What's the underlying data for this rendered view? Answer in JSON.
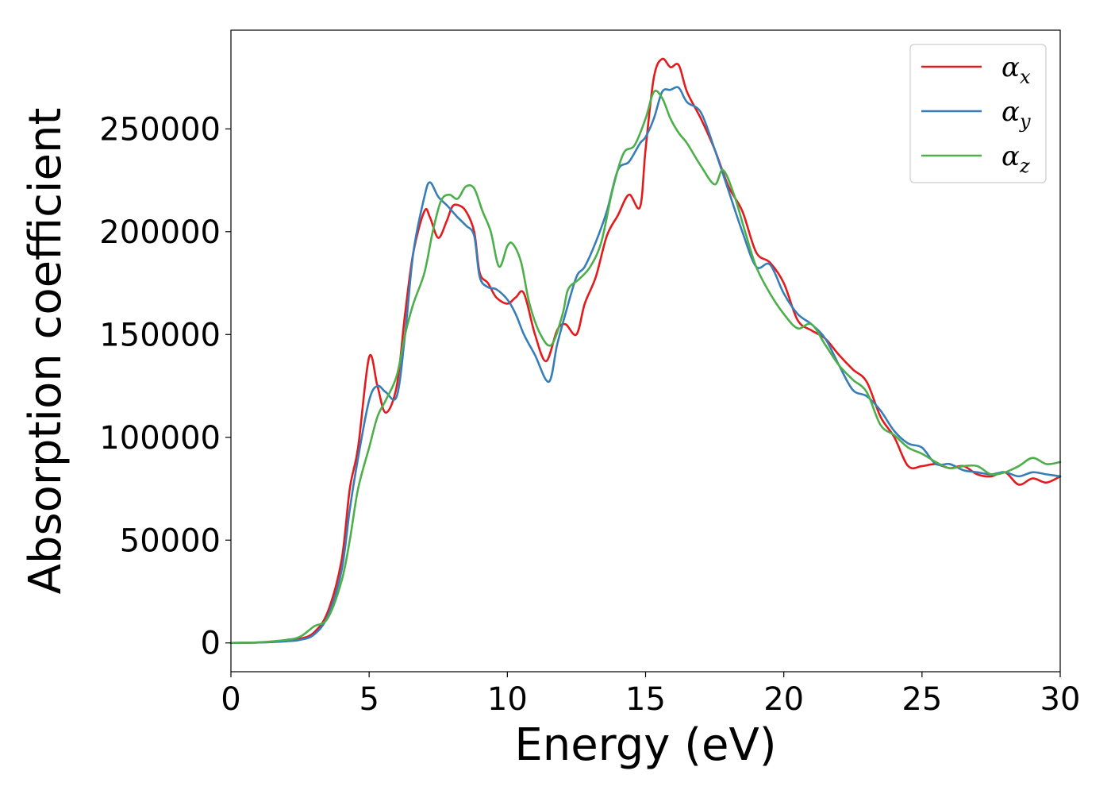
{
  "chart_data": {
    "type": "line",
    "title": "",
    "xlabel": "Energy (eV)",
    "ylabel": "Absorption coefficient",
    "xlim": [
      0,
      30
    ],
    "ylim": [
      -14000,
      298000
    ],
    "xticks": [
      0,
      5,
      10,
      15,
      20,
      25,
      30
    ],
    "xtick_labels": [
      "0",
      "5",
      "10",
      "15",
      "20",
      "25",
      "30"
    ],
    "yticks": [
      0,
      50000,
      100000,
      150000,
      200000,
      250000
    ],
    "ytick_labels": [
      "0",
      "50000",
      "100000",
      "150000",
      "200000",
      "250000"
    ],
    "grid": false,
    "legend_position": "top-right",
    "series": [
      {
        "name": "αx",
        "symbol": "α",
        "subscript": "x",
        "color": "#e41a1c",
        "x": [
          0,
          1,
          2,
          2.5,
          3,
          3.5,
          4,
          4.3,
          4.6,
          5,
          5.3,
          5.6,
          6,
          6.3,
          6.6,
          7,
          7.2,
          7.5,
          7.8,
          8,
          8.2,
          8.5,
          8.8,
          9,
          9.3,
          9.6,
          10,
          10.3,
          10.6,
          11,
          11.4,
          11.8,
          12.1,
          12.5,
          12.8,
          13.2,
          13.6,
          14,
          14.4,
          14.8,
          15,
          15.3,
          15.6,
          15.9,
          16.2,
          16.5,
          17,
          17.5,
          18,
          18.5,
          19,
          19.5,
          20,
          20.5,
          21,
          21.5,
          22,
          22.5,
          23,
          23.5,
          24,
          24.5,
          25,
          25.5,
          26,
          26.5,
          27,
          27.5,
          28,
          28.5,
          29,
          29.5,
          30
        ],
        "y": [
          0,
          200,
          1000,
          2000,
          5000,
          15000,
          40000,
          75000,
          95000,
          139000,
          125000,
          112000,
          125000,
          160000,
          190000,
          210000,
          207000,
          197000,
          205000,
          212000,
          213000,
          210000,
          200000,
          180000,
          175000,
          168000,
          165000,
          168000,
          170000,
          150000,
          137000,
          152000,
          155000,
          150000,
          165000,
          178000,
          198000,
          208000,
          218000,
          212000,
          240000,
          275000,
          284000,
          280000,
          281000,
          268000,
          255000,
          240000,
          222000,
          210000,
          190000,
          185000,
          175000,
          157000,
          152000,
          148000,
          140000,
          133000,
          127000,
          110000,
          100000,
          86000,
          86000,
          87000,
          85000,
          86000,
          82000,
          81000,
          83000,
          77000,
          80000,
          78000,
          81000
        ]
      },
      {
        "name": "αy",
        "symbol": "α",
        "subscript": "y",
        "color": "#377eb8",
        "x": [
          0,
          1,
          2,
          2.5,
          3,
          3.5,
          4,
          4.3,
          4.6,
          5,
          5.3,
          5.6,
          6,
          6.3,
          6.6,
          7,
          7.2,
          7.5,
          7.8,
          8,
          8.2,
          8.5,
          8.8,
          9,
          9.3,
          9.6,
          10,
          10.3,
          10.6,
          11,
          11.5,
          11.8,
          12.1,
          12.5,
          12.8,
          13.2,
          13.6,
          14,
          14.4,
          14.8,
          15,
          15.3,
          15.6,
          15.9,
          16.2,
          16.5,
          17,
          17.5,
          18,
          18.5,
          19,
          19.5,
          20,
          20.5,
          21,
          21.5,
          22,
          22.5,
          23,
          23.5,
          24,
          24.5,
          25,
          25.5,
          26,
          26.5,
          27,
          27.5,
          28,
          28.5,
          29,
          29.5,
          30
        ],
        "y": [
          0,
          200,
          800,
          1500,
          4000,
          13000,
          35000,
          65000,
          90000,
          118000,
          125000,
          122000,
          120000,
          150000,
          190000,
          217000,
          224000,
          217000,
          213000,
          210000,
          207000,
          203000,
          198000,
          178000,
          173000,
          172000,
          167000,
          160000,
          150000,
          140000,
          127000,
          145000,
          160000,
          178000,
          183000,
          195000,
          210000,
          230000,
          234000,
          243000,
          246000,
          255000,
          268000,
          269000,
          270000,
          263000,
          258000,
          240000,
          220000,
          200000,
          183000,
          184000,
          170000,
          160000,
          155000,
          148000,
          135000,
          123000,
          120000,
          113000,
          103000,
          97000,
          95000,
          87000,
          87000,
          84000,
          83000,
          82000,
          83000,
          81000,
          83000,
          82000,
          81000
        ]
      },
      {
        "name": "αz",
        "symbol": "α",
        "subscript": "z",
        "color": "#4daf4a",
        "x": [
          0,
          1,
          2,
          2.5,
          3,
          3.5,
          4,
          4.3,
          4.6,
          5,
          5.3,
          5.6,
          6,
          6.3,
          6.6,
          7,
          7.3,
          7.6,
          7.9,
          8.2,
          8.5,
          8.8,
          9.1,
          9.4,
          9.7,
          10,
          10.2,
          10.5,
          10.8,
          11.2,
          11.6,
          12,
          12.2,
          12.6,
          13,
          13.4,
          13.8,
          14.2,
          14.6,
          15,
          15.3,
          15.6,
          15.9,
          16.2,
          16.5,
          17,
          17.5,
          17.8,
          18.2,
          18.6,
          19,
          19.5,
          20,
          20.5,
          21,
          21.5,
          22,
          22.5,
          23,
          23.5,
          24,
          24.5,
          25,
          25.5,
          26,
          26.5,
          27,
          27.5,
          28,
          28.5,
          29,
          29.5,
          30
        ],
        "y": [
          0,
          300,
          1500,
          3000,
          8000,
          12000,
          30000,
          50000,
          75000,
          95000,
          110000,
          118000,
          130000,
          150000,
          165000,
          180000,
          200000,
          215000,
          218000,
          216000,
          222000,
          221000,
          210000,
          200000,
          183000,
          193000,
          194000,
          185000,
          165000,
          150000,
          145000,
          160000,
          172000,
          177000,
          183000,
          195000,
          220000,
          238000,
          242000,
          255000,
          268000,
          265000,
          255000,
          248000,
          243000,
          232000,
          223000,
          230000,
          218000,
          200000,
          183000,
          170000,
          160000,
          153000,
          155000,
          145000,
          135000,
          128000,
          122000,
          106000,
          101000,
          95000,
          92000,
          88000,
          85000,
          86000,
          86000,
          82000,
          83000,
          86000,
          90000,
          87000,
          88000
        ]
      }
    ]
  }
}
